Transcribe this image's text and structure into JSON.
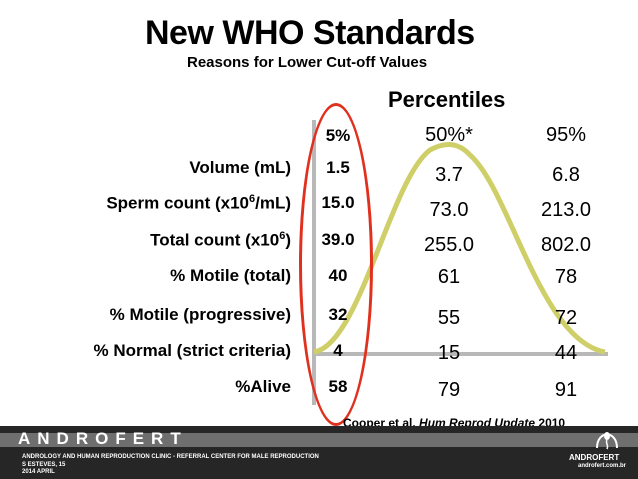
{
  "title": "New WHO Standards",
  "subtitle": "Reasons for Lower Cut-off Values",
  "percentiles_heading": "Percentiles",
  "columns": [
    "5%",
    "50%*",
    "95%"
  ],
  "rows": [
    {
      "label": "Volume (mL)",
      "p5": "1.5",
      "p50": "3.7",
      "p95": "6.8"
    },
    {
      "label_pre": "Sperm count (x10",
      "label_sup": "6",
      "label_post": "/mL)",
      "p5": "15.0",
      "p50": "73.0",
      "p95": "213.0"
    },
    {
      "label_pre": "Total count (x10",
      "label_sup": "6",
      "label_post": ")",
      "p5": "39.0",
      "p50": "255.0",
      "p95": "802.0"
    },
    {
      "label": "% Motile (total)",
      "p5": "40",
      "p50": "61",
      "p95": "78"
    },
    {
      "label": "% Motile (progressive)",
      "p5": "32",
      "p50": "55",
      "p95": "72"
    },
    {
      "label": "% Normal (strict criteria)",
      "p5": "4",
      "p50": "15",
      "p95": "44"
    },
    {
      "label": "%Alive",
      "p5": "58",
      "p50": "79",
      "p95": "91"
    }
  ],
  "citation": {
    "authors": "Cooper et al.",
    "journal": "Hum Reprod Update",
    "year": "2010"
  },
  "footer": {
    "brand": "ANDROFERT",
    "line1": "ANDROLOGY AND HUMAN REPRODUCTION CLINIC - REFERRAL CENTER FOR MALE REPRODUCTION",
    "line2": "S ESTEVES, 15",
    "line3": "2014 APRIL",
    "logo_name": "ANDROFERT",
    "logo_url": "androfert.com.br"
  },
  "colors": {
    "ellipse": "#e0301e",
    "curve": "#cfcf6a",
    "footer_bg": "#262626"
  },
  "icons": {
    "logo": "sperm-logo-icon"
  }
}
